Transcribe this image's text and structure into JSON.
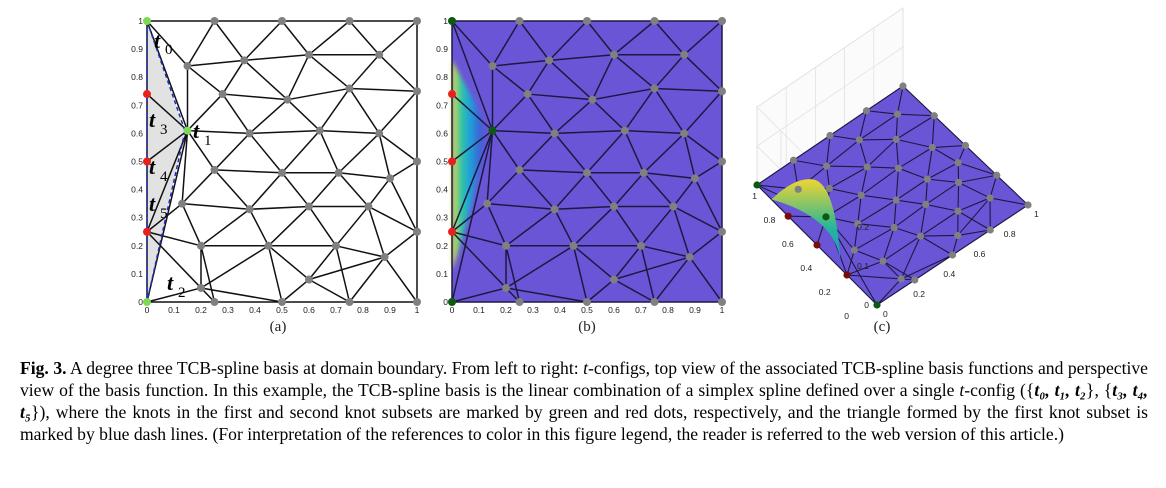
{
  "figure": {
    "panels": [
      {
        "id": "a",
        "label": "(a)"
      },
      {
        "id": "b",
        "label": "(b)"
      },
      {
        "id": "c",
        "label": "(c)"
      }
    ],
    "axis_ticks_2d": [
      "0",
      "0.1",
      "0.2",
      "0.3",
      "0.4",
      "0.5",
      "0.6",
      "0.7",
      "0.8",
      "0.9",
      "1"
    ],
    "panel_c": {
      "z_ticks": [
        "0",
        "0.1",
        "0.2"
      ],
      "left_axis_ticks": [
        "0",
        "0.2",
        "0.4",
        "0.6",
        "0.8",
        "1"
      ],
      "right_axis_ticks": [
        "0",
        "0.2",
        "0.4",
        "0.6",
        "0.8",
        "1"
      ]
    },
    "annotations": {
      "t0": {
        "main": "t",
        "sub": "0"
      },
      "t1": {
        "main": "t",
        "sub": "1"
      },
      "t2": {
        "main": "t",
        "sub": "2"
      },
      "t3": {
        "main": "t",
        "sub": "3"
      },
      "t4": {
        "main": "t",
        "sub": "4"
      },
      "t5": {
        "main": "t",
        "sub": "5"
      }
    },
    "colors": {
      "green_knot": "#7ed957",
      "red_knot": "#e8201c",
      "gray_knot": "#808080",
      "dash_line": "#1f2fbf",
      "surface": "#6a55d6",
      "dark_green": "#0c5a10"
    }
  },
  "caption": {
    "label": "Fig. 3.",
    "text1": " A degree three TCB-spline basis at domain boundary. From left to right: ",
    "t1": "t",
    "text2": "-configs, top view of the associated TCB-spline basis functions and perspective view of the basis function. In this example, the TCB-spline basis is the linear combination of a simplex spline defined over a single ",
    "t2": "t",
    "text3": "-config ({",
    "set1": "t₀, t₁, t₂",
    "text4": "}, {",
    "set2": "t₃, t₄, t₅",
    "text5": "}), where the knots in the first and second knot subsets are marked by green and red dots, respectively, and the triangle formed by the first knot subset is marked by blue dash lines. (For interpretation of the references to color in this figure legend, the reader is referred to the web version of this article.)"
  }
}
